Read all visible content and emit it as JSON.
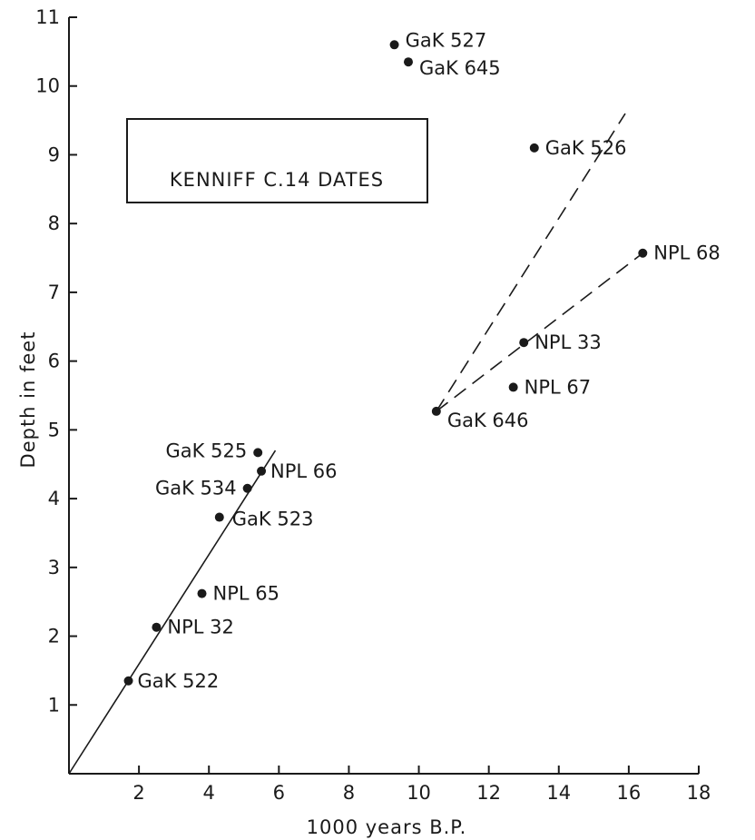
{
  "chart_data": {
    "type": "scatter",
    "title": "KENNIFF  C.14  DATES",
    "xlabel": "1000  years  B.P.",
    "ylabel": "Depth  in  feet",
    "xlim": [
      0,
      18
    ],
    "ylim": [
      0,
      11
    ],
    "x_ticks": [
      "2",
      "4",
      "6",
      "8",
      "10",
      "12",
      "14",
      "16",
      "18"
    ],
    "y_ticks": [
      "1",
      "2",
      "3",
      "4",
      "5",
      "6",
      "7",
      "8",
      "9",
      "10",
      "11"
    ],
    "grid": false,
    "legend": "none",
    "points": [
      {
        "label": "GaK 522",
        "x": 1.7,
        "y": 1.35
      },
      {
        "label": "NPL 32",
        "x": 2.5,
        "y": 2.13
      },
      {
        "label": "NPL 65",
        "x": 3.8,
        "y": 2.62
      },
      {
        "label": "GaK 523",
        "x": 4.3,
        "y": 3.73
      },
      {
        "label": "GaK 534",
        "x": 5.1,
        "y": 4.15
      },
      {
        "label": "NPL 66",
        "x": 5.5,
        "y": 4.4
      },
      {
        "label": "GaK 525",
        "x": 5.4,
        "y": 4.67
      },
      {
        "label": "GaK 646",
        "x": 10.5,
        "y": 5.27
      },
      {
        "label": "NPL 67",
        "x": 12.7,
        "y": 5.62
      },
      {
        "label": "NPL 33",
        "x": 13.0,
        "y": 6.27
      },
      {
        "label": "NPL 68",
        "x": 16.4,
        "y": 7.57
      },
      {
        "label": "GaK 526",
        "x": 13.3,
        "y": 9.1
      },
      {
        "label": "GaK 645",
        "x": 9.7,
        "y": 10.35
      },
      {
        "label": "GaK 527",
        "x": 9.3,
        "y": 10.6
      }
    ],
    "lines": [
      {
        "style": "solid",
        "from": [
          0,
          0
        ],
        "to": [
          5.9,
          4.7
        ]
      },
      {
        "style": "dashed",
        "from": [
          10.5,
          5.27
        ],
        "to": [
          15.9,
          9.6
        ]
      },
      {
        "style": "dashed",
        "from": [
          10.5,
          5.27
        ],
        "to": [
          16.4,
          7.57
        ]
      }
    ]
  }
}
